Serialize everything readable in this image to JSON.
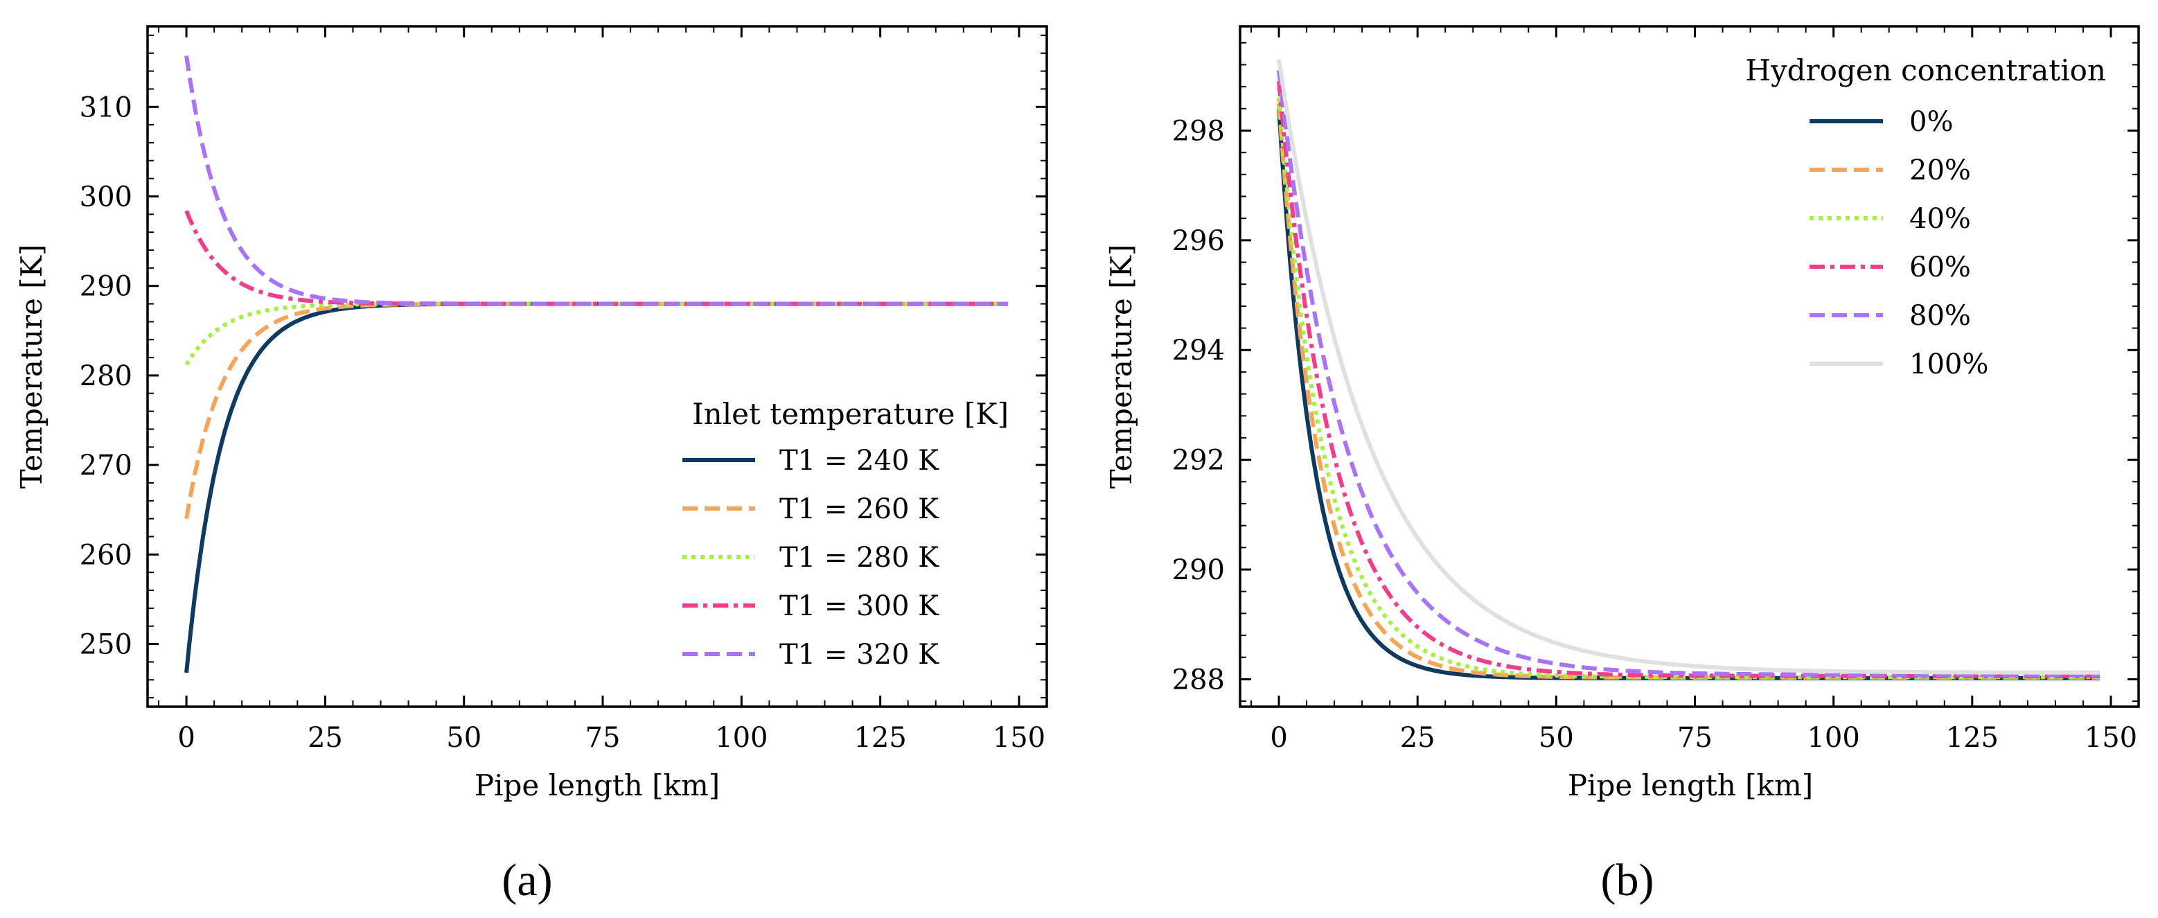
{
  "figure": {
    "panel_labels": [
      "(a)",
      "(b)"
    ]
  },
  "chart_data": [
    {
      "type": "line",
      "panel": "(a)",
      "title": "",
      "xlabel": "Pipe length [km]",
      "ylabel": "Temperature [K]",
      "xlim": [
        -7,
        155
      ],
      "ylim": [
        243,
        319
      ],
      "xticks": [
        0,
        25,
        50,
        75,
        100,
        125,
        150
      ],
      "yticks": [
        250,
        260,
        270,
        280,
        290,
        300,
        310
      ],
      "xtick_labels": [
        "0",
        "25",
        "50",
        "75",
        "100",
        "125",
        "150"
      ],
      "ytick_labels": [
        "250",
        "260",
        "270",
        "280",
        "290",
        "300",
        "310"
      ],
      "grid": false,
      "legend": {
        "title": "Inlet temperature [K]",
        "placement": "lower-right"
      },
      "model": {
        "kind": "exponential-decay",
        "asymptote": 288,
        "x_max": 148,
        "decay_length_km": 6.5
      },
      "series": [
        {
          "name": "T1 = 240 K",
          "start": 246.8,
          "color": "#0f3a5f",
          "dash": "solid"
        },
        {
          "name": "T1 = 260 K",
          "start": 264.0,
          "color": "#f5a55a",
          "dash": "dashed"
        },
        {
          "name": "T1 = 280 K",
          "start": 281.2,
          "color": "#a6f046",
          "dash": "dotted"
        },
        {
          "name": "T1 = 300 K",
          "start": 298.4,
          "color": "#f23c8c",
          "dash": "dashdot"
        },
        {
          "name": "T1 = 320 K",
          "start": 315.7,
          "color": "#a874f5",
          "dash": "dashed"
        }
      ]
    },
    {
      "type": "line",
      "panel": "(b)",
      "title": "",
      "xlabel": "Pipe length [km]",
      "ylabel": "Temperature [K]",
      "xlim": [
        -7,
        155
      ],
      "ylim": [
        287.5,
        299.9
      ],
      "xticks": [
        0,
        25,
        50,
        75,
        100,
        125,
        150
      ],
      "yticks": [
        288,
        290,
        292,
        294,
        296,
        298
      ],
      "xtick_labels": [
        "0",
        "25",
        "50",
        "75",
        "100",
        "125",
        "150"
      ],
      "ytick_labels": [
        "288",
        "290",
        "292",
        "294",
        "296",
        "298"
      ],
      "grid": false,
      "legend": {
        "title": "Hydrogen concentration",
        "placement": "upper-right"
      },
      "model": {
        "kind": "exponential-decay",
        "x_max": 148
      },
      "series": [
        {
          "name": "0%",
          "start": 298.4,
          "end": 288.02,
          "decay_length_km": 6.5,
          "color": "#0f3a5f",
          "dash": "solid"
        },
        {
          "name": "20%",
          "start": 298.5,
          "end": 288.03,
          "decay_length_km": 7.5,
          "color": "#f5a55a",
          "dash": "dashed"
        },
        {
          "name": "40%",
          "start": 298.6,
          "end": 288.04,
          "decay_length_km": 8.5,
          "color": "#a6f046",
          "dash": "dotted"
        },
        {
          "name": "60%",
          "start": 298.9,
          "end": 288.06,
          "decay_length_km": 10.0,
          "color": "#f23c8c",
          "dash": "dashdot"
        },
        {
          "name": "80%",
          "start": 299.1,
          "end": 288.08,
          "decay_length_km": 12.5,
          "color": "#a874f5",
          "dash": "dashed"
        },
        {
          "name": "100%",
          "start": 299.3,
          "end": 288.12,
          "decay_length_km": 16.5,
          "color": "#e0e0e0",
          "dash": "solid"
        }
      ]
    }
  ]
}
